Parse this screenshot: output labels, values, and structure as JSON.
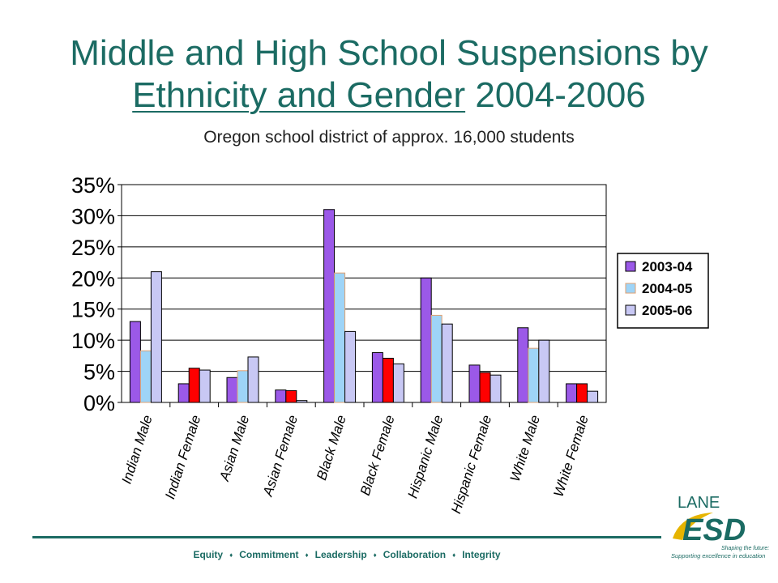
{
  "title": {
    "line1": "Middle and High School Suspensions by",
    "underlined": "Ethnicity and Gender",
    "years": "2004-2006"
  },
  "subtitle": "Oregon school district of approx. 16,000 students",
  "colors": {
    "title": "#1b6b63",
    "series_2003": "#9b59e8",
    "series_2004": "#9ed4f7",
    "series_2005": "#c8c8f4",
    "highlight": "#ff0000"
  },
  "chart_data": {
    "type": "bar",
    "categories": [
      "Indian Male",
      "Indian Female",
      "Asian Male",
      "Asian Female",
      "Black Male",
      "Black Female",
      "Hispanic Male",
      "Hispanic Female",
      "White Male",
      "White Female"
    ],
    "series": [
      {
        "name": "2003-04",
        "values": [
          13,
          3,
          4,
          2,
          31,
          8,
          20,
          6,
          12,
          3
        ]
      },
      {
        "name": "2004-05",
        "values": [
          8.3,
          5.5,
          5.1,
          1.9,
          20.8,
          7.1,
          14,
          4.8,
          8.7,
          3
        ]
      },
      {
        "name": "2005-06",
        "values": [
          21,
          5.2,
          7.3,
          0.3,
          11.4,
          6.2,
          12.6,
          4.4,
          10,
          1.8
        ]
      }
    ],
    "highlighted_bars": {
      "series": 1,
      "categories": [
        1,
        3,
        5,
        7,
        9
      ]
    },
    "ylim": [
      0,
      35
    ],
    "yticks": [
      "0%",
      "5%",
      "10%",
      "15%",
      "20%",
      "25%",
      "30%",
      "35%"
    ],
    "ytick_values": [
      0,
      5,
      10,
      15,
      20,
      25,
      30,
      35
    ],
    "grid": true,
    "legend": "right"
  },
  "footer": {
    "items": [
      "Equity",
      "Commitment",
      "Leadership",
      "Collaboration",
      "Integrity"
    ],
    "separator": "♦"
  },
  "logo": {
    "top": "LANE",
    "main": "ESD",
    "tagline1": "Shaping the future:",
    "tagline2": "Supporting excellence in education"
  }
}
